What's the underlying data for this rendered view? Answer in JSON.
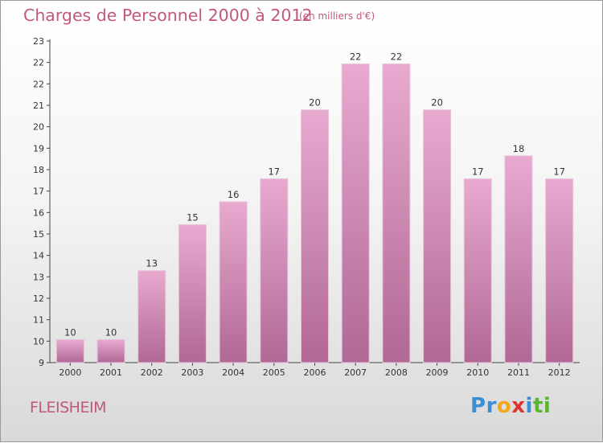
{
  "title": "Charges de Personnel 2000 à 2012",
  "unit": "(en milliers d'€)",
  "town": "FLEISHEIM",
  "logo": {
    "letters": [
      "P",
      "r",
      "o",
      "x",
      "i",
      "t",
      "i"
    ],
    "colors": [
      "#3a8fd4",
      "#3a8fd4",
      "#f2a818",
      "#e0342f",
      "#3a8fd4",
      "#5cb531",
      "#5cb531"
    ]
  },
  "chart_data": {
    "type": "bar",
    "title": "Charges de Personnel 2000 à 2012",
    "subtitle": "(en milliers d'€)",
    "categories": [
      "2000",
      "2001",
      "2002",
      "2003",
      "2004",
      "2005",
      "2006",
      "2007",
      "2008",
      "2009",
      "2010",
      "2011",
      "2012"
    ],
    "values": [
      10,
      10,
      13,
      15,
      16,
      17,
      20,
      22,
      22,
      20,
      17,
      18,
      17
    ],
    "ylim": [
      9,
      23
    ],
    "yticks": [
      "9",
      "10",
      "11",
      "12",
      "13",
      "14",
      "15",
      "16",
      "17",
      "18",
      "19",
      "20",
      "21",
      "22",
      "22",
      "23"
    ],
    "grid": false,
    "bar_color_top": "#e8aad0",
    "bar_color_bottom": "#b06894"
  }
}
